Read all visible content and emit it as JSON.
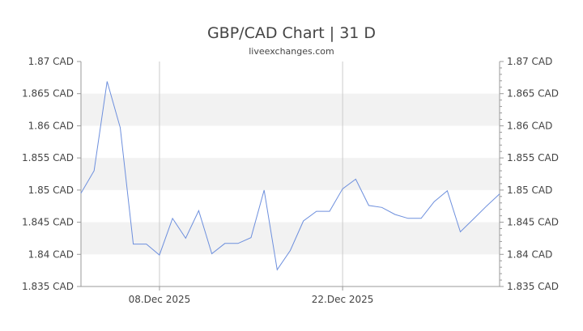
{
  "chart_data": {
    "type": "line",
    "title": "GBP/CAD Chart | 31 D",
    "subtitle": "liveexchanges.com",
    "x_tick_labels": [
      "08.Dec 2025",
      "22.Dec 2025"
    ],
    "y_tick_labels": [
      "1.87 CAD",
      "1.865 CAD",
      "1.86 CAD",
      "1.855 CAD",
      "1.85 CAD",
      "1.845 CAD",
      "1.84 CAD",
      "1.835 CAD"
    ],
    "y_ticks": [
      1.87,
      1.865,
      1.86,
      1.855,
      1.85,
      1.845,
      1.84,
      1.835
    ],
    "ylim": [
      1.835,
      1.87
    ],
    "xlim": [
      "2025-12-02",
      "2025-12-31"
    ],
    "x_tick_dates": [
      "2025-12-08",
      "2025-12-22"
    ],
    "grid": "horizontal alternating bands, vertical lines at labeled dates",
    "line_color": "#6d8fdd",
    "band_color": "#f2f2f2",
    "axis_color": "#999999",
    "series": [
      {
        "x": [
          "2025-12-02",
          "2025-12-03",
          "2025-12-04",
          "2025-12-05",
          "2025-12-06",
          "2025-12-07",
          "2025-12-08",
          "2025-12-09",
          "2025-12-10",
          "2025-12-11",
          "2025-12-12",
          "2025-12-13",
          "2025-12-14",
          "2025-12-15",
          "2025-12-16",
          "2025-12-17",
          "2025-12-18",
          "2025-12-19",
          "2025-12-20",
          "2025-12-21",
          "2025-12-22",
          "2025-12-23",
          "2025-12-24",
          "2025-12-25",
          "2025-12-26",
          "2025-12-27",
          "2025-12-28",
          "2025-12-29",
          "2025-12-30",
          "2025-12-31"
        ],
        "values": [
          1.8495,
          1.853,
          1.8669,
          1.8597,
          1.8416,
          1.8416,
          1.8399,
          1.8456,
          1.8425,
          1.8468,
          1.8401,
          1.8417,
          1.8417,
          1.8426,
          1.85,
          1.8376,
          1.8406,
          1.8452,
          1.8467,
          1.8467,
          1.8502,
          1.8517,
          1.8476,
          1.8473,
          1.8462,
          1.8456,
          1.8456,
          1.8482,
          1.8499,
          1.8435
        ]
      }
    ],
    "trailing_points": [
      {
        "x": "2026-01-01",
        "value": 1.8455
      },
      {
        "x": "2026-01-02",
        "value": 1.8475
      },
      {
        "x": "2026-01-03",
        "value": 1.8494
      }
    ]
  }
}
